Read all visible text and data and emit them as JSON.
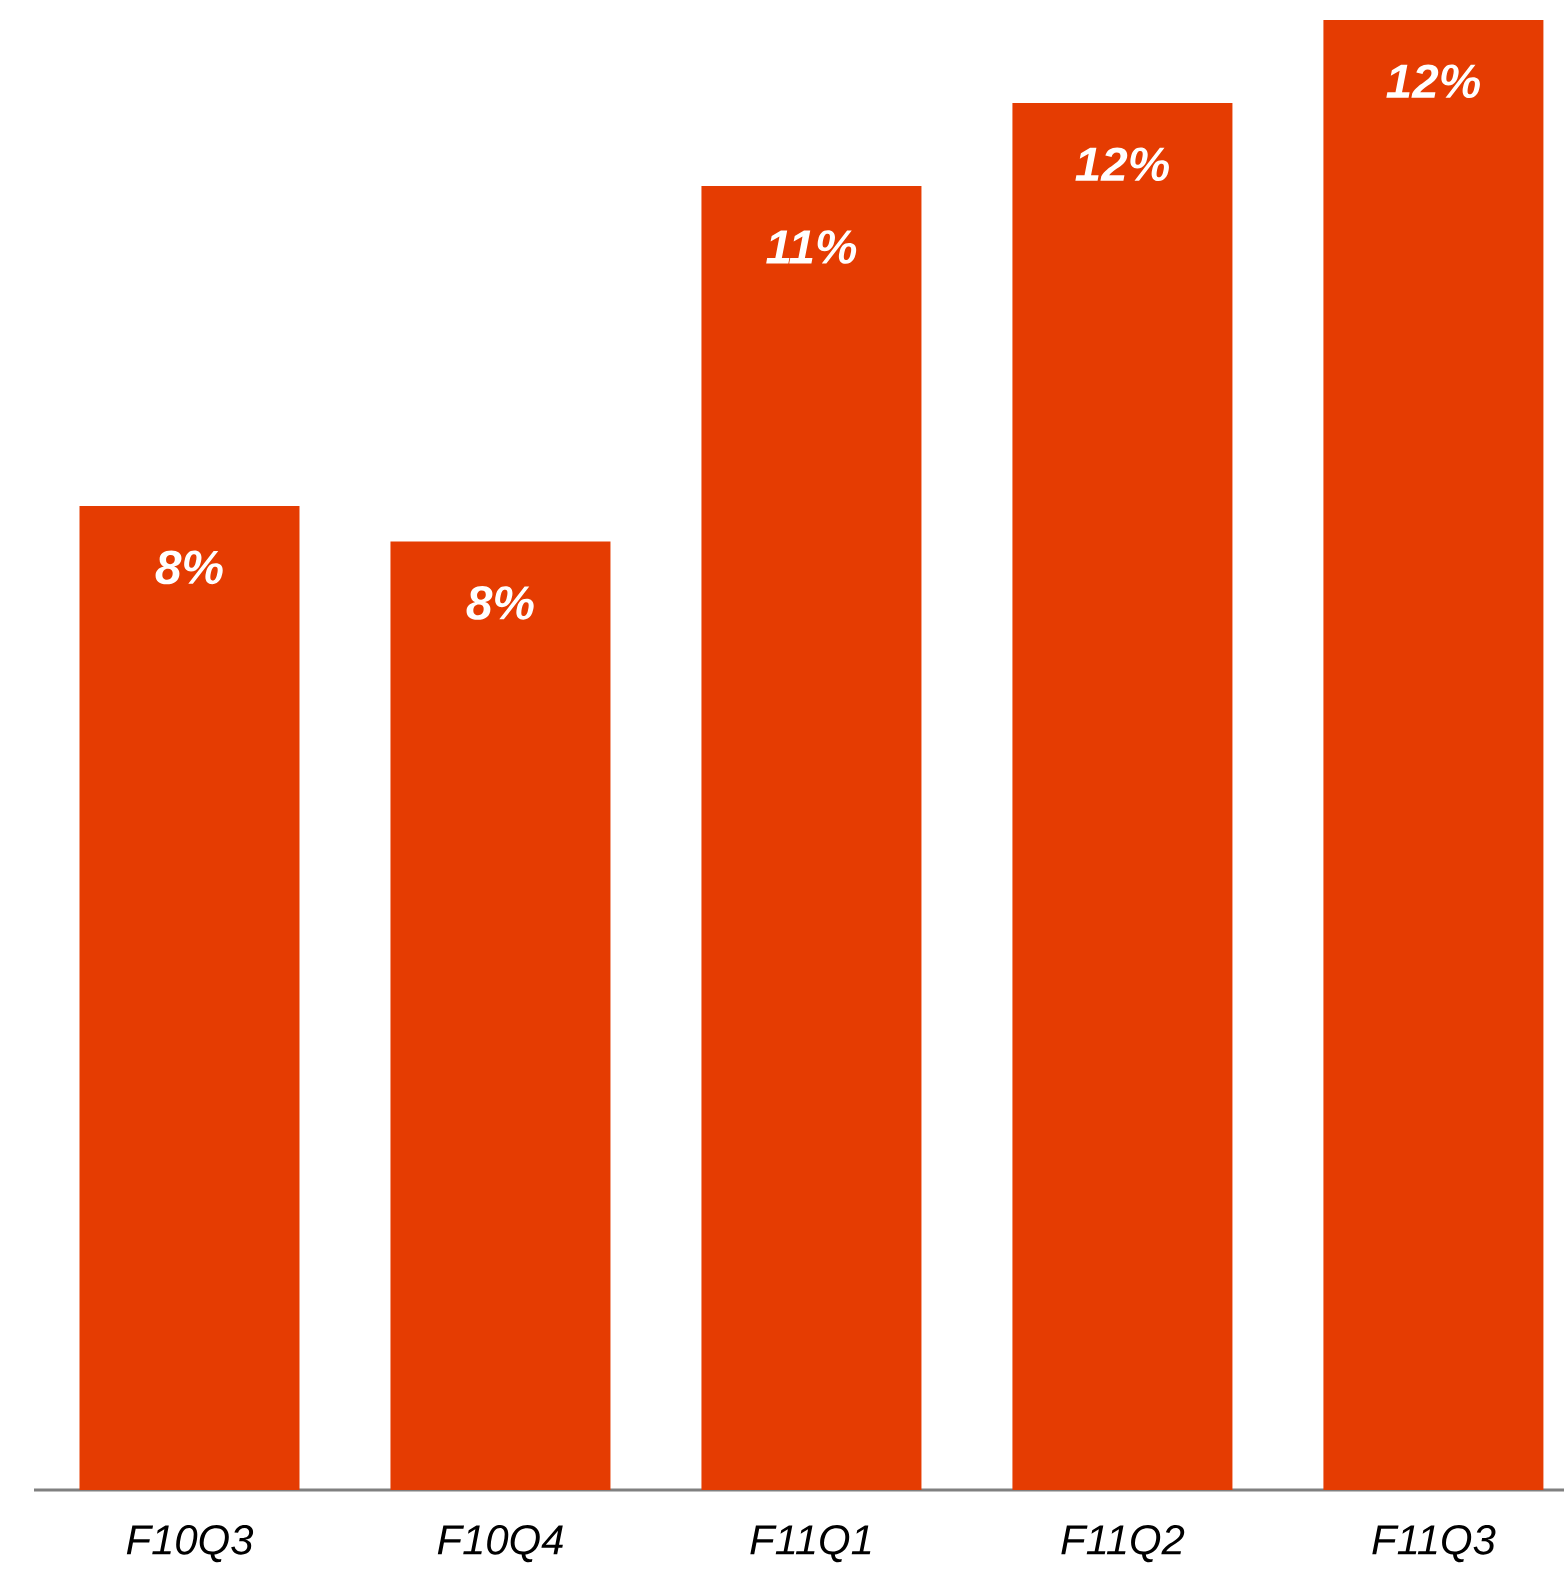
{
  "chart_data": {
    "type": "bar",
    "categories": [
      "F10Q3",
      "F10Q4",
      "F11Q1",
      "F11Q2",
      "F11Q3"
    ],
    "values": [
      8.3,
      8.0,
      11.0,
      11.7,
      12.4
    ],
    "value_labels": [
      "8%",
      "8%",
      "11%",
      "12%",
      "12%"
    ],
    "color": "#e53c02"
  }
}
